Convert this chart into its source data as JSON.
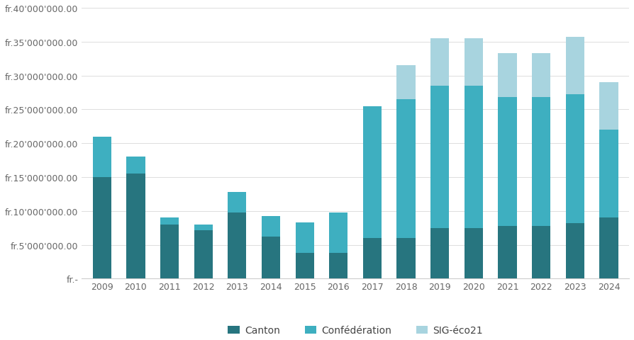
{
  "years": [
    2009,
    2010,
    2011,
    2012,
    2013,
    2014,
    2015,
    2016,
    2017,
    2018,
    2019,
    2020,
    2021,
    2022,
    2023,
    2024
  ],
  "canton": [
    15000000,
    15500000,
    8000000,
    7200000,
    9800000,
    6200000,
    3800000,
    3800000,
    6000000,
    6000000,
    7500000,
    7500000,
    7800000,
    7800000,
    8200000,
    9000000
  ],
  "confederation": [
    6000000,
    2500000,
    1000000,
    800000,
    3000000,
    3000000,
    4500000,
    6000000,
    19500000,
    20500000,
    21000000,
    21000000,
    19000000,
    19000000,
    19000000,
    13000000
  ],
  "sig_eco21": [
    0,
    0,
    0,
    0,
    0,
    0,
    0,
    0,
    0,
    5000000,
    7000000,
    7000000,
    6500000,
    6500000,
    8500000,
    7000000
  ],
  "color_canton": "#27757f",
  "color_confederation": "#3eafc0",
  "color_sig": "#a8d4df",
  "ylim": [
    0,
    40000000
  ],
  "yticks": [
    0,
    5000000,
    10000000,
    15000000,
    20000000,
    25000000,
    30000000,
    35000000,
    40000000
  ],
  "legend_labels": [
    "Canton",
    "Confédération",
    "SIG-éco21"
  ],
  "background_color": "#ffffff",
  "bar_width": 0.55
}
